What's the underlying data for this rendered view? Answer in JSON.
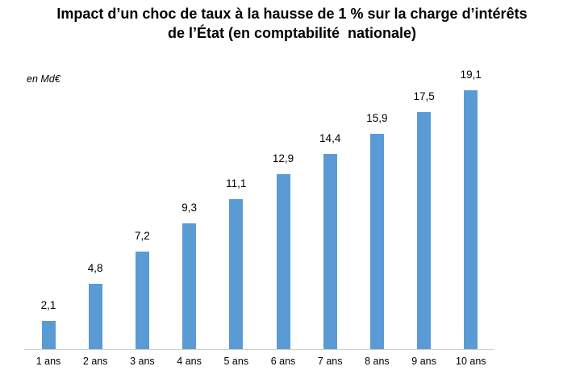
{
  "chart": {
    "title_line1": "Impact d’un choc de taux à la hausse de 1 % sur la charge d’intérêts",
    "title_line2": "de l’État (en comptabilité  nationale)",
    "unit_label": "en Md€"
  },
  "chart_data": {
    "type": "bar",
    "title": "Impact d’un choc de taux à la hausse de 1 % sur la charge d’intérêts de l’État (en comptabilité nationale)",
    "unit": "en Md€",
    "categories": [
      "1 ans",
      "2 ans",
      "3 ans",
      "4 ans",
      "5 ans",
      "6 ans",
      "7 ans",
      "8 ans",
      "9 ans",
      "10 ans"
    ],
    "values": [
      2.1,
      4.8,
      7.2,
      9.3,
      11.1,
      12.9,
      14.4,
      15.9,
      17.5,
      19.1
    ],
    "value_labels": [
      "2,1",
      "4,8",
      "7,2",
      "9,3",
      "11,1",
      "12,9",
      "14,4",
      "15,9",
      "17,5",
      "19,1"
    ],
    "xlabel": "",
    "ylabel": "en Md€",
    "ylim": [
      0,
      20
    ],
    "grid": false,
    "legend": "none",
    "data_labels": "outside-end",
    "bar_color": "#5B9BD5",
    "axis_line_color": "#CFCFCF",
    "text_color": "#000000"
  }
}
